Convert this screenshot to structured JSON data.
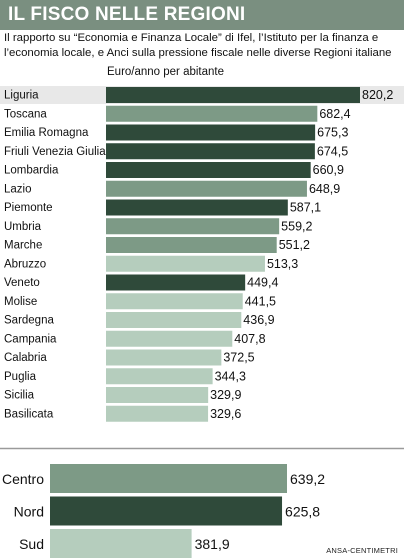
{
  "title": "IL FISCO NELLE REGIONI",
  "subtitle": "Il rapporto su “Economia e Finanza Locale” di Ifel, l’Istituto per la finanza e l’economia locale, e Anci sulla pressione fiscale nelle diverse Regioni italiane",
  "unit_label": "Euro/anno per abitante",
  "credit": "ANSA-CENTIMETRI",
  "colors": {
    "title_band": "#7a8f80",
    "dark": "#2f4a3a",
    "medium": "#7d9a86",
    "light": "#b5cdbd",
    "highlight_row": "#e8e8e8",
    "divider": "#9a9a9a"
  },
  "chart_data": [
    {
      "type": "bar",
      "orientation": "horizontal",
      "categories": [
        "Liguria",
        "Toscana",
        "Emilia Romagna",
        "Friuli Venezia Giulia",
        "Lombardia",
        "Lazio",
        "Piemonte",
        "Umbria",
        "Marche",
        "Abruzzo",
        "Veneto",
        "Molise",
        "Sardegna",
        "Campania",
        "Calabria",
        "Puglia",
        "Sicilia",
        "Basilicata"
      ],
      "values": [
        820.2,
        682.4,
        675.3,
        674.5,
        660.9,
        648.9,
        587.1,
        559.2,
        551.2,
        513.3,
        449.4,
        441.5,
        436.9,
        407.8,
        372.5,
        344.3,
        329.9,
        329.6
      ],
      "value_labels": [
        "820,2",
        "682,4",
        "675,3",
        "674,5",
        "660,9",
        "648,9",
        "587,1",
        "559,2",
        "551,2",
        "513,3",
        "449,4",
        "441,5",
        "436,9",
        "407,8",
        "372,5",
        "344,3",
        "329,9",
        "329,6"
      ],
      "area": [
        "nord",
        "centro",
        "nord",
        "nord",
        "nord",
        "centro",
        "nord",
        "centro",
        "centro",
        "sud",
        "nord",
        "sud",
        "sud",
        "sud",
        "sud",
        "sud",
        "sud",
        "sud"
      ],
      "highlight": "Liguria",
      "unit": "Euro/anno per abitante",
      "xlim": [
        0,
        820.2
      ],
      "grid": false
    },
    {
      "type": "bar",
      "orientation": "horizontal",
      "categories": [
        "Centro",
        "Nord",
        "Sud"
      ],
      "values": [
        639.2,
        625.8,
        381.9
      ],
      "value_labels": [
        "639,2",
        "625,8",
        "381,9"
      ],
      "area": [
        "centro",
        "nord",
        "sud"
      ],
      "xlim": [
        0,
        639.2
      ],
      "grid": false
    }
  ]
}
